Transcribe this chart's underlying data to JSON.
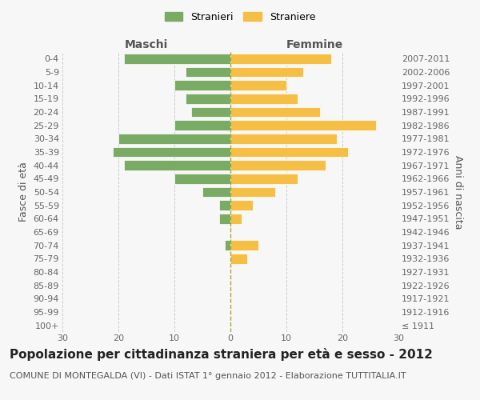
{
  "age_groups": [
    "100+",
    "95-99",
    "90-94",
    "85-89",
    "80-84",
    "75-79",
    "70-74",
    "65-69",
    "60-64",
    "55-59",
    "50-54",
    "45-49",
    "40-44",
    "35-39",
    "30-34",
    "25-29",
    "20-24",
    "15-19",
    "10-14",
    "5-9",
    "0-4"
  ],
  "birth_years": [
    "≤ 1911",
    "1912-1916",
    "1917-1921",
    "1922-1926",
    "1927-1931",
    "1932-1936",
    "1937-1941",
    "1942-1946",
    "1947-1951",
    "1952-1956",
    "1957-1961",
    "1962-1966",
    "1967-1971",
    "1972-1976",
    "1977-1981",
    "1982-1986",
    "1987-1991",
    "1992-1996",
    "1997-2001",
    "2002-2006",
    "2007-2011"
  ],
  "males": [
    0,
    0,
    0,
    0,
    0,
    0,
    1,
    0,
    2,
    2,
    5,
    10,
    19,
    21,
    20,
    10,
    7,
    8,
    10,
    8,
    19
  ],
  "females": [
    0,
    0,
    0,
    0,
    0,
    3,
    5,
    0,
    2,
    4,
    8,
    12,
    17,
    21,
    19,
    26,
    16,
    12,
    10,
    13,
    18
  ],
  "male_color": "#7aab64",
  "female_color": "#f5bf45",
  "title": "Popolazione per cittadinanza straniera per età e sesso - 2012",
  "subtitle": "COMUNE DI MONTEGALDA (VI) - Dati ISTAT 1° gennaio 2012 - Elaborazione TUTTITALIA.IT",
  "left_label": "Maschi",
  "right_label": "Femmine",
  "ylabel_left": "Fasce di età",
  "ylabel_right": "Anni di nascita",
  "legend_male": "Stranieri",
  "legend_female": "Straniere",
  "xlim": 30,
  "background_color": "#f7f7f7",
  "bar_edge_color": "white",
  "grid_color": "#cccccc",
  "title_fontsize": 11,
  "subtitle_fontsize": 8,
  "tick_fontsize": 8,
  "legend_fontsize": 9,
  "label_fontsize": 10
}
